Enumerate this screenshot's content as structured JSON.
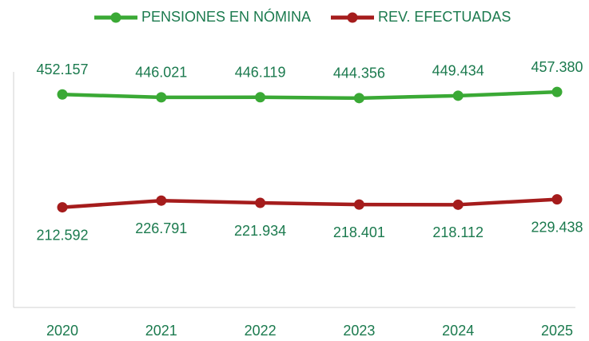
{
  "chart_data": {
    "type": "line",
    "categories": [
      "2020",
      "2021",
      "2022",
      "2023",
      "2024",
      "2025"
    ],
    "series": [
      {
        "name": "PENSIONES EN NÓMINA",
        "color": "#3aa935",
        "values": [
          452157,
          446021,
          446119,
          444356,
          449434,
          457380
        ],
        "value_labels": [
          "452.157",
          "446.021",
          "446.119",
          "444.356",
          "449.434",
          "457.380"
        ]
      },
      {
        "name": "REV. EFECTUADAS",
        "color": "#a51c1c",
        "values": [
          212592,
          226791,
          221934,
          218401,
          218112,
          229438
        ],
        "value_labels": [
          "212.592",
          "226.791",
          "221.934",
          "218.401",
          "218.112",
          "229.438"
        ]
      }
    ],
    "ylim": [
      0,
      500000
    ],
    "legend": "top"
  }
}
